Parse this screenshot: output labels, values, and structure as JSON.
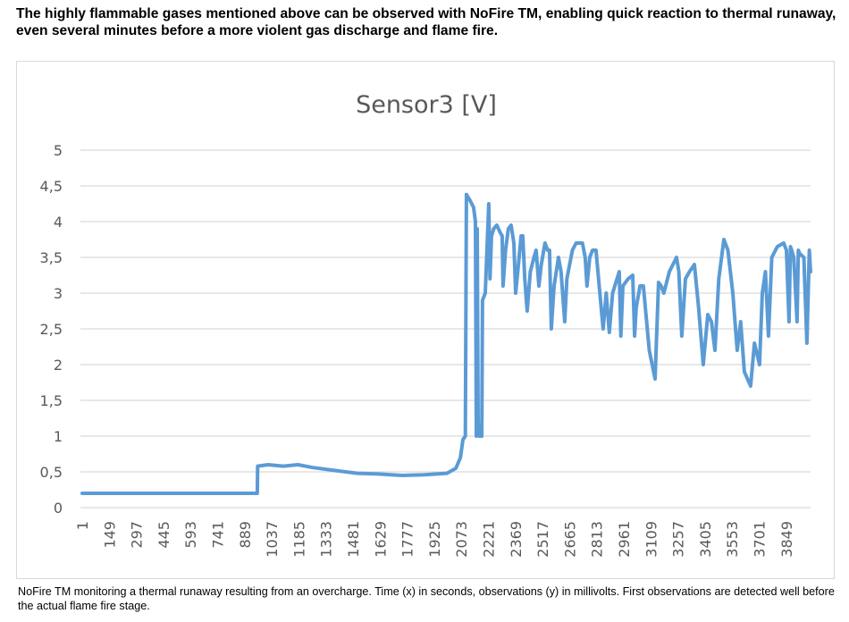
{
  "document": {
    "heading": "The highly flammable gases mentioned above can be observed with NoFire TM, enabling quick reaction to thermal runaway, even several minutes before a more violent gas discharge and flame fire.",
    "caption": "NoFire TM monitoring a thermal runaway resulting from an overcharge. Time (x) in seconds, observations (y) in millivolts. First observations are detected well before the actual flame fire stage."
  },
  "chart_data": {
    "type": "line",
    "title": "Sensor3 [V]",
    "xlabel": "",
    "ylabel": "",
    "ylim": [
      0,
      5
    ],
    "xlim": [
      1,
      3982
    ],
    "grid": true,
    "legend": "none",
    "line_color": "#5B9BD5",
    "y_ticks": [
      "0",
      "0,5",
      "1",
      "1,5",
      "2",
      "2,5",
      "3",
      "3,5",
      "4",
      "4,5",
      "5"
    ],
    "x_ticks": [
      "1",
      "149",
      "297",
      "445",
      "593",
      "741",
      "889",
      "1037",
      "1185",
      "1333",
      "1481",
      "1629",
      "1777",
      "1925",
      "2073",
      "2221",
      "2369",
      "2517",
      "2665",
      "2813",
      "2961",
      "3109",
      "3257",
      "3405",
      "3553",
      "3701",
      "3849"
    ],
    "series": [
      {
        "name": "Sensor3 [V]",
        "points": [
          [
            1,
            0.2
          ],
          [
            300,
            0.2
          ],
          [
            600,
            0.2
          ],
          [
            950,
            0.2
          ],
          [
            958,
            0.2
          ],
          [
            960,
            0.58
          ],
          [
            1017,
            0.6
          ],
          [
            1100,
            0.58
          ],
          [
            1180,
            0.6
          ],
          [
            1261,
            0.56
          ],
          [
            1380,
            0.52
          ],
          [
            1505,
            0.48
          ],
          [
            1620,
            0.47
          ],
          [
            1749,
            0.45
          ],
          [
            1870,
            0.46
          ],
          [
            1994,
            0.48
          ],
          [
            2043,
            0.55
          ],
          [
            2068,
            0.7
          ],
          [
            2082,
            0.95
          ],
          [
            2095,
            1.0
          ],
          [
            2101,
            4.38
          ],
          [
            2120,
            4.3
          ],
          [
            2140,
            4.2
          ],
          [
            2150,
            4.0
          ],
          [
            2155,
            1.0
          ],
          [
            2160,
            3.9
          ],
          [
            2165,
            1.2
          ],
          [
            2170,
            1.0
          ],
          [
            2185,
            1.0
          ],
          [
            2189,
            2.9
          ],
          [
            2204,
            3.0
          ],
          [
            2223,
            4.25
          ],
          [
            2230,
            3.2
          ],
          [
            2238,
            3.8
          ],
          [
            2250,
            3.9
          ],
          [
            2267,
            3.95
          ],
          [
            2285,
            3.85
          ],
          [
            2296,
            3.8
          ],
          [
            2301,
            3.1
          ],
          [
            2315,
            3.6
          ],
          [
            2330,
            3.9
          ],
          [
            2345,
            3.95
          ],
          [
            2360,
            3.7
          ],
          [
            2370,
            3.0
          ],
          [
            2385,
            3.4
          ],
          [
            2400,
            3.8
          ],
          [
            2409,
            3.8
          ],
          [
            2420,
            3.2
          ],
          [
            2433,
            2.75
          ],
          [
            2450,
            3.3
          ],
          [
            2470,
            3.5
          ],
          [
            2482,
            3.6
          ],
          [
            2497,
            3.1
          ],
          [
            2510,
            3.4
          ],
          [
            2530,
            3.7
          ],
          [
            2545,
            3.6
          ],
          [
            2555,
            3.6
          ],
          [
            2565,
            2.5
          ],
          [
            2580,
            3.1
          ],
          [
            2604,
            3.5
          ],
          [
            2618,
            3.3
          ],
          [
            2638,
            2.6
          ],
          [
            2650,
            3.2
          ],
          [
            2680,
            3.6
          ],
          [
            2700,
            3.7
          ],
          [
            2712,
            3.7
          ],
          [
            2735,
            3.7
          ],
          [
            2750,
            3.5
          ],
          [
            2760,
            3.1
          ],
          [
            2775,
            3.5
          ],
          [
            2790,
            3.6
          ],
          [
            2809,
            3.6
          ],
          [
            2830,
            3.0
          ],
          [
            2848,
            2.5
          ],
          [
            2865,
            3.0
          ],
          [
            2882,
            2.45
          ],
          [
            2900,
            3.0
          ],
          [
            2936,
            3.3
          ],
          [
            2945,
            2.4
          ],
          [
            2956,
            3.1
          ],
          [
            2985,
            3.2
          ],
          [
            3010,
            3.25
          ],
          [
            3020,
            2.4
          ],
          [
            3029,
            2.8
          ],
          [
            3050,
            3.1
          ],
          [
            3068,
            3.1
          ],
          [
            3100,
            2.2
          ],
          [
            3132,
            1.8
          ],
          [
            3151,
            3.15
          ],
          [
            3165,
            3.1
          ],
          [
            3180,
            3.0
          ],
          [
            3210,
            3.3
          ],
          [
            3249,
            3.5
          ],
          [
            3262,
            3.3
          ],
          [
            3278,
            2.4
          ],
          [
            3298,
            3.2
          ],
          [
            3320,
            3.3
          ],
          [
            3347,
            3.4
          ],
          [
            3370,
            2.8
          ],
          [
            3395,
            2.0
          ],
          [
            3420,
            2.7
          ],
          [
            3440,
            2.6
          ],
          [
            3459,
            2.2
          ],
          [
            3480,
            3.2
          ],
          [
            3508,
            3.75
          ],
          [
            3530,
            3.6
          ],
          [
            3557,
            3.0
          ],
          [
            3581,
            2.2
          ],
          [
            3600,
            2.6
          ],
          [
            3620,
            1.9
          ],
          [
            3654,
            1.7
          ],
          [
            3675,
            2.3
          ],
          [
            3703,
            2.0
          ],
          [
            3718,
            3.0
          ],
          [
            3735,
            3.3
          ],
          [
            3752,
            2.4
          ],
          [
            3770,
            3.5
          ],
          [
            3800,
            3.65
          ],
          [
            3835,
            3.7
          ],
          [
            3850,
            3.6
          ],
          [
            3864,
            2.6
          ],
          [
            3872,
            3.65
          ],
          [
            3879,
            3.6
          ],
          [
            3890,
            3.5
          ],
          [
            3908,
            2.6
          ],
          [
            3915,
            3.6
          ],
          [
            3923,
            3.55
          ],
          [
            3945,
            3.5
          ],
          [
            3962,
            2.3
          ],
          [
            3975,
            3.6
          ],
          [
            3982,
            3.3
          ]
        ]
      }
    ]
  }
}
